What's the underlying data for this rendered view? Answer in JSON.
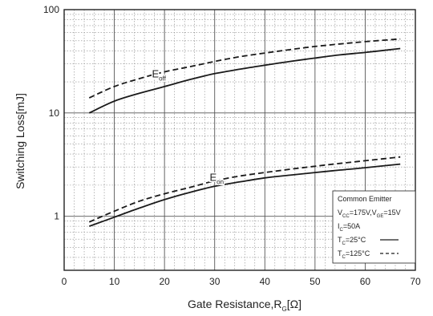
{
  "chart_data": {
    "type": "line",
    "x_axis": {
      "label_main": "Gate Resistance,R",
      "label_sub": "G",
      "label_unit": "[Ω]",
      "ticks": [
        "0",
        "10",
        "20",
        "30",
        "40",
        "50",
        "60",
        "70"
      ],
      "range": [
        0,
        70
      ]
    },
    "y_axis": {
      "label": "Switching Loss[mJ]",
      "scale": "log",
      "ticks": [
        "1",
        "10",
        "100"
      ],
      "range": [
        0.3,
        100
      ]
    },
    "grid": true,
    "x": [
      5,
      10,
      15,
      20,
      25,
      30,
      35,
      40,
      45,
      50,
      55,
      60,
      67
    ],
    "series": [
      {
        "group": "Eoff",
        "condition": "Tc=25°C",
        "style": "solid",
        "values": [
          10.0,
          13.0,
          15.5,
          18.0,
          21.0,
          24.0,
          26.5,
          29.0,
          31.5,
          34.0,
          36.5,
          38.5,
          42.0
        ]
      },
      {
        "group": "Eoff",
        "condition": "Tc=125°C",
        "style": "dashed",
        "values": [
          14.0,
          18.0,
          21.5,
          25.0,
          28.0,
          31.5,
          35.0,
          38.0,
          41.0,
          44.0,
          46.5,
          49.0,
          52.0
        ]
      },
      {
        "group": "Eon",
        "condition": "Tc=25°C",
        "style": "solid",
        "values": [
          0.8,
          0.98,
          1.2,
          1.45,
          1.7,
          1.95,
          2.15,
          2.35,
          2.5,
          2.65,
          2.8,
          2.95,
          3.2
        ]
      },
      {
        "group": "Eon",
        "condition": "Tc=125°C",
        "style": "dashed",
        "values": [
          0.88,
          1.12,
          1.4,
          1.65,
          1.9,
          2.2,
          2.45,
          2.65,
          2.85,
          3.05,
          3.25,
          3.45,
          3.75
        ]
      }
    ],
    "annotations": [
      {
        "id": "eoff",
        "main": "E",
        "sub": "off",
        "x": 17.5,
        "y": 22.0
      },
      {
        "id": "eon",
        "main": "E",
        "sub": "on",
        "x": 29,
        "y": 2.2
      }
    ],
    "legend": {
      "position": "bottom-right",
      "title": "Common Emitter",
      "line1": {
        "a_main": "V",
        "a_sub": "CC",
        "a_val": "=175V,",
        "b_main": "V",
        "b_sub": "GE",
        "b_val": "=15V"
      },
      "line2": {
        "main": "I",
        "sub": "C",
        "val": "=50A"
      },
      "entries": [
        {
          "main": "T",
          "sub": "C",
          "val": "=25°C",
          "style": "solid"
        },
        {
          "main": "T",
          "sub": "C",
          "val": "=125°C",
          "style": "dashed"
        }
      ]
    },
    "colors": {
      "line": "#1a1a1a",
      "major_grid": "#555555",
      "minor_grid": "#8a8a8a",
      "frame": "#222222"
    }
  }
}
